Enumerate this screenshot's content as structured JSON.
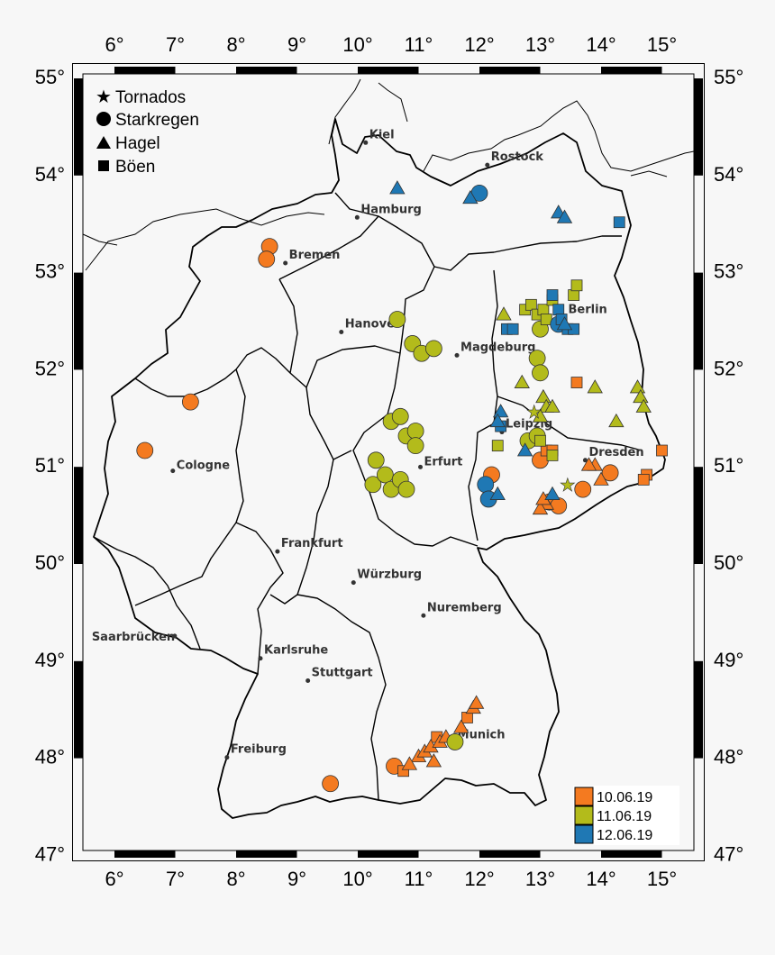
{
  "lon_ticks": [
    "6°",
    "7°",
    "8°",
    "9°",
    "10°",
    "11°",
    "12°",
    "13°",
    "14°",
    "15°"
  ],
  "lat_ticks": [
    "55°",
    "54°",
    "53°",
    "52°",
    "51°",
    "50°",
    "49°",
    "48°",
    "47°"
  ],
  "legend": {
    "tornados": "Tornados",
    "starkregen": "Starkregen",
    "hagel": "Hagel",
    "boeen": "Böen"
  },
  "date_legend": [
    {
      "label": "10.06.19",
      "color": "#f47a20"
    },
    {
      "label": "11.06.19",
      "color": "#b3bb1b"
    },
    {
      "label": "12.06.19",
      "color": "#1f78b4"
    }
  ],
  "cities": [
    {
      "name": "Kiel",
      "lon": 10.13,
      "lat": 54.32
    },
    {
      "name": "Rostock",
      "lon": 12.13,
      "lat": 54.09
    },
    {
      "name": "Hamburg",
      "lon": 9.99,
      "lat": 53.55
    },
    {
      "name": "Bremen",
      "lon": 8.81,
      "lat": 53.08
    },
    {
      "name": "Berlin",
      "lon": 13.4,
      "lat": 52.52
    },
    {
      "name": "Hanover",
      "lon": 9.73,
      "lat": 52.37
    },
    {
      "name": "Magdeburg",
      "lon": 11.63,
      "lat": 52.13
    },
    {
      "name": "Leipzig",
      "lon": 12.37,
      "lat": 51.34
    },
    {
      "name": "Cologne",
      "lon": 6.96,
      "lat": 50.94
    },
    {
      "name": "Erfurt",
      "lon": 11.03,
      "lat": 50.98
    },
    {
      "name": "Dresden",
      "lon": 13.74,
      "lat": 51.05
    },
    {
      "name": "Frankfurt",
      "lon": 8.68,
      "lat": 50.11
    },
    {
      "name": "Würzburg",
      "lon": 9.93,
      "lat": 49.79
    },
    {
      "name": "Nuremberg",
      "lon": 11.08,
      "lat": 49.45
    },
    {
      "name": "Saarbrücken",
      "lon": 6.99,
      "lat": 49.24
    },
    {
      "name": "Karlsruhe",
      "lon": 8.4,
      "lat": 49.01
    },
    {
      "name": "Stuttgart",
      "lon": 9.18,
      "lat": 48.78
    },
    {
      "name": "Munich",
      "lon": 11.58,
      "lat": 48.14
    },
    {
      "name": "Freiburg",
      "lon": 7.85,
      "lat": 47.99
    }
  ],
  "events": [
    {
      "lon": 8.55,
      "lat": 53.25,
      "type": "starkregen",
      "day": 0
    },
    {
      "lon": 8.5,
      "lat": 53.12,
      "type": "starkregen",
      "day": 0
    },
    {
      "lon": 7.25,
      "lat": 51.65,
      "type": "starkregen",
      "day": 0
    },
    {
      "lon": 6.5,
      "lat": 51.15,
      "type": "starkregen",
      "day": 0
    },
    {
      "lon": 12.2,
      "lat": 50.9,
      "type": "starkregen",
      "day": 0
    },
    {
      "lon": 13.0,
      "lat": 51.05,
      "type": "starkregen",
      "day": 0
    },
    {
      "lon": 13.7,
      "lat": 50.75,
      "type": "starkregen",
      "day": 0
    },
    {
      "lon": 14.15,
      "lat": 50.92,
      "type": "starkregen",
      "day": 0
    },
    {
      "lon": 13.15,
      "lat": 50.62,
      "type": "starkregen",
      "day": 0
    },
    {
      "lon": 13.3,
      "lat": 50.58,
      "type": "starkregen",
      "day": 0
    },
    {
      "lon": 9.55,
      "lat": 47.72,
      "type": "starkregen",
      "day": 0
    },
    {
      "lon": 10.6,
      "lat": 47.9,
      "type": "starkregen",
      "day": 0
    },
    {
      "lon": 13.1,
      "lat": 51.15,
      "type": "boeen",
      "day": 0
    },
    {
      "lon": 13.2,
      "lat": 51.15,
      "type": "boeen",
      "day": 0
    },
    {
      "lon": 13.6,
      "lat": 51.85,
      "type": "boeen",
      "day": 0
    },
    {
      "lon": 14.75,
      "lat": 50.9,
      "type": "boeen",
      "day": 0
    },
    {
      "lon": 14.7,
      "lat": 50.85,
      "type": "boeen",
      "day": 0
    },
    {
      "lon": 15.0,
      "lat": 51.15,
      "type": "boeen",
      "day": 0
    },
    {
      "lon": 10.75,
      "lat": 47.85,
      "type": "boeen",
      "day": 0
    },
    {
      "lon": 11.3,
      "lat": 48.2,
      "type": "boeen",
      "day": 0
    },
    {
      "lon": 11.8,
      "lat": 48.4,
      "type": "boeen",
      "day": 0
    },
    {
      "lon": 13.9,
      "lat": 51.0,
      "type": "hagel",
      "day": 0
    },
    {
      "lon": 14.0,
      "lat": 50.85,
      "type": "hagel",
      "day": 0
    },
    {
      "lon": 13.8,
      "lat": 51.0,
      "type": "hagel",
      "day": 0
    },
    {
      "lon": 13.1,
      "lat": 50.6,
      "type": "hagel",
      "day": 0
    },
    {
      "lon": 13.0,
      "lat": 50.55,
      "type": "hagel",
      "day": 0
    },
    {
      "lon": 13.05,
      "lat": 50.65,
      "type": "hagel",
      "day": 0
    },
    {
      "lon": 11.0,
      "lat": 48.0,
      "type": "hagel",
      "day": 0
    },
    {
      "lon": 11.1,
      "lat": 48.05,
      "type": "hagel",
      "day": 0
    },
    {
      "lon": 11.2,
      "lat": 48.1,
      "type": "hagel",
      "day": 0
    },
    {
      "lon": 11.35,
      "lat": 48.15,
      "type": "hagel",
      "day": 0
    },
    {
      "lon": 11.45,
      "lat": 48.2,
      "type": "hagel",
      "day": 0
    },
    {
      "lon": 11.7,
      "lat": 48.3,
      "type": "hagel",
      "day": 0
    },
    {
      "lon": 11.9,
      "lat": 48.5,
      "type": "hagel",
      "day": 0
    },
    {
      "lon": 11.95,
      "lat": 48.55,
      "type": "hagel",
      "day": 0
    },
    {
      "lon": 11.25,
      "lat": 47.95,
      "type": "hagel",
      "day": 0
    },
    {
      "lon": 10.85,
      "lat": 47.92,
      "type": "hagel",
      "day": 0
    },
    {
      "lon": 10.65,
      "lat": 52.5,
      "type": "starkregen",
      "day": 1
    },
    {
      "lon": 10.9,
      "lat": 52.25,
      "type": "starkregen",
      "day": 1
    },
    {
      "lon": 11.05,
      "lat": 52.15,
      "type": "starkregen",
      "day": 1
    },
    {
      "lon": 11.25,
      "lat": 52.2,
      "type": "starkregen",
      "day": 1
    },
    {
      "lon": 10.55,
      "lat": 51.45,
      "type": "starkregen",
      "day": 1
    },
    {
      "lon": 10.7,
      "lat": 51.5,
      "type": "starkregen",
      "day": 1
    },
    {
      "lon": 10.8,
      "lat": 51.3,
      "type": "starkregen",
      "day": 1
    },
    {
      "lon": 10.95,
      "lat": 51.35,
      "type": "starkregen",
      "day": 1
    },
    {
      "lon": 10.95,
      "lat": 51.2,
      "type": "starkregen",
      "day": 1
    },
    {
      "lon": 10.3,
      "lat": 51.05,
      "type": "starkregen",
      "day": 1
    },
    {
      "lon": 10.25,
      "lat": 50.8,
      "type": "starkregen",
      "day": 1
    },
    {
      "lon": 10.45,
      "lat": 50.9,
      "type": "starkregen",
      "day": 1
    },
    {
      "lon": 10.55,
      "lat": 50.75,
      "type": "starkregen",
      "day": 1
    },
    {
      "lon": 10.7,
      "lat": 50.85,
      "type": "starkregen",
      "day": 1
    },
    {
      "lon": 10.8,
      "lat": 50.75,
      "type": "starkregen",
      "day": 1
    },
    {
      "lon": 12.95,
      "lat": 52.1,
      "type": "starkregen",
      "day": 1
    },
    {
      "lon": 13.0,
      "lat": 51.95,
      "type": "starkregen",
      "day": 1
    },
    {
      "lon": 13.0,
      "lat": 52.4,
      "type": "starkregen",
      "day": 1
    },
    {
      "lon": 12.8,
      "lat": 51.25,
      "type": "starkregen",
      "day": 1
    },
    {
      "lon": 12.95,
      "lat": 51.3,
      "type": "starkregen",
      "day": 1
    },
    {
      "lon": 11.6,
      "lat": 48.15,
      "type": "starkregen",
      "day": 1
    },
    {
      "lon": 12.75,
      "lat": 52.6,
      "type": "boeen",
      "day": 1
    },
    {
      "lon": 12.85,
      "lat": 52.65,
      "type": "boeen",
      "day": 1
    },
    {
      "lon": 12.95,
      "lat": 52.55,
      "type": "boeen",
      "day": 1
    },
    {
      "lon": 13.05,
      "lat": 52.6,
      "type": "boeen",
      "day": 1
    },
    {
      "lon": 13.1,
      "lat": 52.5,
      "type": "boeen",
      "day": 1
    },
    {
      "lon": 13.2,
      "lat": 52.7,
      "type": "boeen",
      "day": 1
    },
    {
      "lon": 13.55,
      "lat": 52.75,
      "type": "boeen",
      "day": 1
    },
    {
      "lon": 13.6,
      "lat": 52.85,
      "type": "boeen",
      "day": 1
    },
    {
      "lon": 13.0,
      "lat": 51.25,
      "type": "boeen",
      "day": 1
    },
    {
      "lon": 12.3,
      "lat": 51.2,
      "type": "boeen",
      "day": 1
    },
    {
      "lon": 13.2,
      "lat": 51.1,
      "type": "boeen",
      "day": 1
    },
    {
      "lon": 12.7,
      "lat": 51.85,
      "type": "hagel",
      "day": 1
    },
    {
      "lon": 13.05,
      "lat": 51.7,
      "type": "hagel",
      "day": 1
    },
    {
      "lon": 13.1,
      "lat": 51.6,
      "type": "hagel",
      "day": 1
    },
    {
      "lon": 13.2,
      "lat": 51.6,
      "type": "hagel",
      "day": 1
    },
    {
      "lon": 13.0,
      "lat": 51.5,
      "type": "hagel",
      "day": 1
    },
    {
      "lon": 13.9,
      "lat": 51.8,
      "type": "hagel",
      "day": 1
    },
    {
      "lon": 14.25,
      "lat": 51.45,
      "type": "hagel",
      "day": 1
    },
    {
      "lon": 14.6,
      "lat": 51.8,
      "type": "hagel",
      "day": 1
    },
    {
      "lon": 14.65,
      "lat": 51.7,
      "type": "hagel",
      "day": 1
    },
    {
      "lon": 14.7,
      "lat": 51.6,
      "type": "hagel",
      "day": 1
    },
    {
      "lon": 12.4,
      "lat": 52.55,
      "type": "hagel",
      "day": 1
    },
    {
      "lon": 13.45,
      "lat": 50.8,
      "type": "tornados",
      "day": 1
    },
    {
      "lon": 12.9,
      "lat": 51.55,
      "type": "tornados",
      "day": 1
    },
    {
      "lon": 12.0,
      "lat": 53.8,
      "type": "starkregen",
      "day": 2
    },
    {
      "lon": 12.1,
      "lat": 50.8,
      "type": "starkregen",
      "day": 2
    },
    {
      "lon": 12.15,
      "lat": 50.65,
      "type": "starkregen",
      "day": 2
    },
    {
      "lon": 13.3,
      "lat": 52.45,
      "type": "starkregen",
      "day": 2
    },
    {
      "lon": 13.3,
      "lat": 52.6,
      "type": "boeen",
      "day": 2
    },
    {
      "lon": 13.35,
      "lat": 52.5,
      "type": "boeen",
      "day": 2
    },
    {
      "lon": 13.45,
      "lat": 52.4,
      "type": "boeen",
      "day": 2
    },
    {
      "lon": 13.55,
      "lat": 52.4,
      "type": "boeen",
      "day": 2
    },
    {
      "lon": 12.45,
      "lat": 52.4,
      "type": "boeen",
      "day": 2
    },
    {
      "lon": 12.55,
      "lat": 52.4,
      "type": "boeen",
      "day": 2
    },
    {
      "lon": 13.2,
      "lat": 52.75,
      "type": "boeen",
      "day": 2
    },
    {
      "lon": 14.3,
      "lat": 53.5,
      "type": "boeen",
      "day": 2
    },
    {
      "lon": 12.35,
      "lat": 51.4,
      "type": "boeen",
      "day": 2
    },
    {
      "lon": 10.65,
      "lat": 53.85,
      "type": "hagel",
      "day": 2
    },
    {
      "lon": 11.85,
      "lat": 53.75,
      "type": "hagel",
      "day": 2
    },
    {
      "lon": 13.3,
      "lat": 53.6,
      "type": "hagel",
      "day": 2
    },
    {
      "lon": 13.4,
      "lat": 53.55,
      "type": "hagel",
      "day": 2
    },
    {
      "lon": 12.35,
      "lat": 51.55,
      "type": "hagel",
      "day": 2
    },
    {
      "lon": 12.3,
      "lat": 51.45,
      "type": "hagel",
      "day": 2
    },
    {
      "lon": 12.75,
      "lat": 51.15,
      "type": "hagel",
      "day": 2
    },
    {
      "lon": 12.3,
      "lat": 50.7,
      "type": "hagel",
      "day": 2
    },
    {
      "lon": 13.2,
      "lat": 50.7,
      "type": "hagel",
      "day": 2
    },
    {
      "lon": 13.4,
      "lat": 52.45,
      "type": "hagel",
      "day": 2
    }
  ]
}
